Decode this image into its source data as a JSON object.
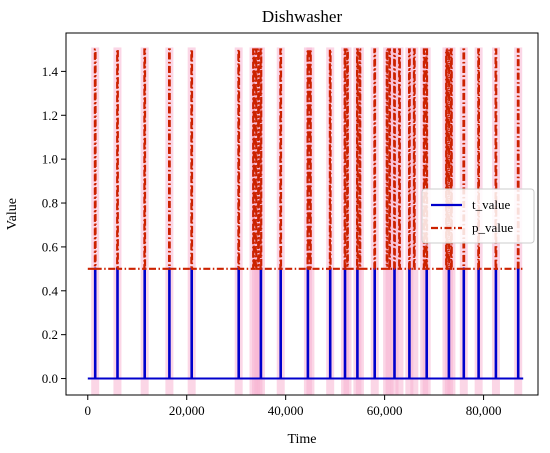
{
  "chart_data": {
    "type": "line",
    "title": "Dishwasher",
    "xlabel": "Time",
    "ylabel": "Value",
    "xlim": [
      -4400,
      91000
    ],
    "ylim": [
      -0.075,
      1.575
    ],
    "x_ticks": [
      0,
      20000,
      40000,
      60000,
      80000
    ],
    "x_tick_labels": [
      "0",
      "20,000",
      "40,000",
      "60,000",
      "80,000"
    ],
    "y_ticks": [
      0.0,
      0.2,
      0.4,
      0.6,
      0.8,
      1.0,
      1.2,
      1.4
    ],
    "y_tick_labels": [
      "0.0",
      "0.2",
      "0.4",
      "0.6",
      "0.8",
      "1.0",
      "1.2",
      "1.4"
    ],
    "legend_position": "right",
    "series": [
      {
        "name": "t_value",
        "style": "solid",
        "color": "#0000cc",
        "baseline": 0,
        "peak": 0.5,
        "spike_x": [
          1500,
          6000,
          11500,
          16500,
          21000,
          30500,
          35000,
          39000,
          44500,
          49000,
          52000,
          54500,
          58000,
          62000,
          65000,
          68500,
          73000,
          76000,
          79000,
          82500,
          87000
        ]
      },
      {
        "name": "p_value",
        "style": "dashdot",
        "color": "#cc2200",
        "baseline": 0.5,
        "peak": 1.5,
        "spike_x": [
          1500,
          6000,
          11500,
          16500,
          21000,
          30500,
          33500,
          34000,
          34500,
          35000,
          39000,
          44500,
          45000,
          49000,
          52000,
          52500,
          54500,
          55000,
          58000,
          60500,
          61000,
          62000,
          63000,
          65000,
          66000,
          68000,
          68500,
          72500,
          73000,
          73500,
          76000,
          79000,
          82500,
          87000
        ]
      }
    ]
  }
}
